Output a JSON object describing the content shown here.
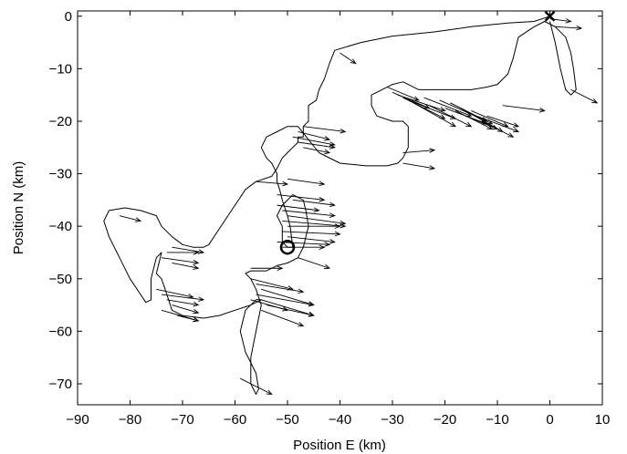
{
  "chart_data": {
    "type": "line",
    "xlabel": "Position E (km)",
    "ylabel": "Position N (km)",
    "xlim": [
      -90,
      10
    ],
    "ylim": [
      -74,
      1
    ],
    "xticks": [
      -90,
      -80,
      -70,
      -60,
      -50,
      -40,
      -30,
      -20,
      -10,
      0,
      10
    ],
    "yticks": [
      0,
      -10,
      -20,
      -30,
      -40,
      -50,
      -60,
      -70
    ],
    "xtick_labels": [
      "−90",
      "−80",
      "−70",
      "−60",
      "−50",
      "−40",
      "−30",
      "−20",
      "−10",
      "0",
      "10"
    ],
    "ytick_labels": [
      "0",
      "−10",
      "−20",
      "−30",
      "−40",
      "−50",
      "−60",
      "−70"
    ],
    "grid": false,
    "track": {
      "x": [
        0,
        -3,
        -8,
        -15,
        -22,
        -30,
        -36,
        -41,
        -42,
        -43,
        -44,
        -44.5,
        -46,
        -46,
        -47,
        -47,
        -48,
        -48,
        -49,
        -50,
        -51,
        -52,
        -53,
        -56,
        -58,
        -60,
        -62,
        -64,
        -65,
        -66,
        -68,
        -70,
        -72,
        -74,
        -75,
        -78,
        -81,
        -84,
        -85,
        -84,
        -82,
        -80,
        -78,
        -77,
        -76,
        -76,
        -75,
        -74,
        -75,
        -74,
        -73,
        -72,
        -70,
        -66,
        -63,
        -60,
        -57,
        -55,
        -56,
        -58,
        -59,
        -58,
        -57,
        -56,
        -55.5,
        -56,
        -57,
        -57,
        -56,
        -55,
        -56,
        -57,
        -58,
        -57,
        -54,
        -52,
        -50,
        -48,
        -47,
        -46,
        -46.5,
        -47,
        -49,
        -51,
        -52,
        -51,
        -51,
        -50,
        -49,
        -49.5,
        -50,
        -51,
        -51.5,
        -52,
        -52,
        -53,
        -54,
        -55,
        -54,
        -52,
        -50,
        -48,
        -46,
        -44,
        -40,
        -35,
        -31,
        -29,
        -28,
        -27,
        -27,
        -28,
        -30,
        -33,
        -34,
        -34,
        -33,
        -32,
        -30,
        -28,
        -27,
        -25,
        -22,
        -18,
        -15,
        -12,
        -10,
        -8,
        -7,
        -6,
        -3,
        -1,
        1,
        3,
        4,
        4.5,
        5,
        4,
        3,
        2,
        1,
        0
      ],
      "y": [
        0,
        -1,
        -1.3,
        -2,
        -3,
        -3.8,
        -5,
        -6.5,
        -9,
        -12,
        -14,
        -16,
        -17,
        -20,
        -21,
        -23,
        -23,
        -24,
        -25,
        -26,
        -27,
        -29,
        -30.5,
        -31.5,
        -33,
        -36,
        -39,
        -42,
        -43.5,
        -44,
        -44,
        -43.5,
        -42,
        -40,
        -38,
        -37,
        -36.5,
        -37,
        -39,
        -42,
        -46,
        -50,
        -53,
        -54.5,
        -54,
        -50,
        -46,
        -45,
        -49,
        -50,
        -53,
        -56,
        -57,
        -57.5,
        -57,
        -56,
        -55,
        -54,
        -54,
        -56,
        -60,
        -64,
        -66,
        -68,
        -71,
        -72,
        -70,
        -65,
        -60,
        -55,
        -52,
        -50,
        -49,
        -48.5,
        -48.5,
        -47.5,
        -47,
        -46,
        -44,
        -40,
        -37,
        -35,
        -34,
        -36,
        -38,
        -40,
        -43,
        -44,
        -44,
        -40,
        -38,
        -35,
        -33,
        -31.5,
        -30,
        -28,
        -27,
        -25,
        -23,
        -22,
        -21,
        -21,
        -23.5,
        -26,
        -28,
        -28.5,
        -28.5,
        -28,
        -27,
        -25,
        -21,
        -20,
        -20,
        -19,
        -17,
        -15,
        -14.5,
        -14,
        -13,
        -12.5,
        -13,
        -14,
        -14,
        -14,
        -14,
        -13.5,
        -13,
        -11,
        -8,
        -4,
        -2,
        -1,
        -2,
        -4,
        -7,
        -10,
        -14,
        -15,
        -14,
        -10,
        -5,
        -1
      ]
    },
    "markers": [
      {
        "kind": "x",
        "x": 0,
        "y": 0
      },
      {
        "kind": "o",
        "x": -50,
        "y": -44
      }
    ],
    "arrows": [
      {
        "x": 0,
        "y": -0.5,
        "u": 4,
        "v": -0.5
      },
      {
        "x": 1,
        "y": -2,
        "u": 5,
        "v": -0.3
      },
      {
        "x": 4,
        "y": -14,
        "u": 5,
        "v": -2.5
      },
      {
        "x": -40,
        "y": -7,
        "u": 3,
        "v": -2
      },
      {
        "x": -31,
        "y": -13.5,
        "u": 6,
        "v": -2.5
      },
      {
        "x": -30,
        "y": -14.5,
        "u": 7,
        "v": -3
      },
      {
        "x": -29,
        "y": -15,
        "u": 9,
        "v": -3
      },
      {
        "x": -28,
        "y": -15.5,
        "u": 8,
        "v": -4
      },
      {
        "x": -27,
        "y": -16,
        "u": 9,
        "v": -3.5
      },
      {
        "x": -26,
        "y": -16.5,
        "u": 8,
        "v": -4.5
      },
      {
        "x": -24,
        "y": -15.5,
        "u": 9,
        "v": -3.5
      },
      {
        "x": -23,
        "y": -17,
        "u": 8,
        "v": -4
      },
      {
        "x": -21,
        "y": -16,
        "u": 9,
        "v": -4
      },
      {
        "x": -20,
        "y": -17.5,
        "u": 8,
        "v": -3
      },
      {
        "x": -19,
        "y": -16.5,
        "u": 8,
        "v": -4
      },
      {
        "x": -18,
        "y": -18,
        "u": 7,
        "v": -3.5
      },
      {
        "x": -17,
        "y": -17.5,
        "u": 8,
        "v": -4.5
      },
      {
        "x": -16,
        "y": -19,
        "u": 6,
        "v": -2.5
      },
      {
        "x": -15,
        "y": -18,
        "u": 7,
        "v": -3
      },
      {
        "x": -14,
        "y": -19,
        "u": 8,
        "v": -3
      },
      {
        "x": -13,
        "y": -20,
        "u": 6,
        "v": -3
      },
      {
        "x": -12,
        "y": -19,
        "u": 6,
        "v": -2
      },
      {
        "x": -9,
        "y": -17,
        "u": 8,
        "v": -1
      },
      {
        "x": -47,
        "y": -21,
        "u": 8,
        "v": -1
      },
      {
        "x": -48,
        "y": -22,
        "u": 6,
        "v": -1.5
      },
      {
        "x": -49,
        "y": -23,
        "u": 8,
        "v": -1.5
      },
      {
        "x": -48,
        "y": -24,
        "u": 7,
        "v": -1
      },
      {
        "x": -47,
        "y": -25,
        "u": 5,
        "v": -1
      },
      {
        "x": -28,
        "y": -26,
        "u": 6,
        "v": 0.5
      },
      {
        "x": -28,
        "y": -28,
        "u": 6,
        "v": -1
      },
      {
        "x": -56,
        "y": -31.5,
        "u": 6,
        "v": -0.5
      },
      {
        "x": -50,
        "y": -31,
        "u": 7,
        "v": -1
      },
      {
        "x": -52,
        "y": -36,
        "u": 8,
        "v": -1
      },
      {
        "x": -51,
        "y": -37,
        "u": 10,
        "v": -1
      },
      {
        "x": -50,
        "y": -38,
        "u": 11,
        "v": -1.5
      },
      {
        "x": -51,
        "y": -39,
        "u": 12,
        "v": -1
      },
      {
        "x": -50,
        "y": -40,
        "u": 10,
        "v": 0
      },
      {
        "x": -51,
        "y": -41,
        "u": 11,
        "v": -0.5
      },
      {
        "x": -50,
        "y": -42,
        "u": 9,
        "v": -1
      },
      {
        "x": -52,
        "y": -43,
        "u": 10,
        "v": -0.5
      },
      {
        "x": -51,
        "y": -44,
        "u": 8,
        "v": 0
      },
      {
        "x": -52,
        "y": -34,
        "u": 9,
        "v": -1
      },
      {
        "x": -49,
        "y": -35,
        "u": 8,
        "v": -1
      },
      {
        "x": -48,
        "y": -46,
        "u": 6,
        "v": -2
      },
      {
        "x": -57,
        "y": -48,
        "u": 6,
        "v": 0
      },
      {
        "x": -57,
        "y": -50,
        "u": 8,
        "v": -2
      },
      {
        "x": -56,
        "y": -51,
        "u": 9,
        "v": -1.5
      },
      {
        "x": -55,
        "y": -52,
        "u": 10,
        "v": -3
      },
      {
        "x": -56,
        "y": -53,
        "u": 11,
        "v": -2
      },
      {
        "x": -55,
        "y": -54,
        "u": 10,
        "v": -3
      },
      {
        "x": -54,
        "y": -55,
        "u": 9,
        "v": -2
      },
      {
        "x": -55,
        "y": -56,
        "u": 8,
        "v": -3
      },
      {
        "x": -57,
        "y": -54,
        "u": 7,
        "v": -2
      },
      {
        "x": -59,
        "y": -69,
        "u": 6,
        "v": -3
      },
      {
        "x": -82,
        "y": -38,
        "u": 4,
        "v": -1
      },
      {
        "x": -72,
        "y": -44,
        "u": 6,
        "v": -1
      },
      {
        "x": -73,
        "y": -45,
        "u": 6,
        "v": 0
      },
      {
        "x": -74,
        "y": -46,
        "u": 7,
        "v": -1
      },
      {
        "x": -72,
        "y": -47,
        "u": 5,
        "v": -1
      },
      {
        "x": -75,
        "y": -52,
        "u": 7,
        "v": -1.5
      },
      {
        "x": -74,
        "y": -53,
        "u": 8,
        "v": -1
      },
      {
        "x": -73,
        "y": -54,
        "u": 6,
        "v": -1
      },
      {
        "x": -72,
        "y": -55,
        "u": 5,
        "v": -1.5
      },
      {
        "x": -74,
        "y": -56,
        "u": 7,
        "v": -2
      },
      {
        "x": -71,
        "y": -57,
        "u": 4,
        "v": -1
      }
    ]
  }
}
